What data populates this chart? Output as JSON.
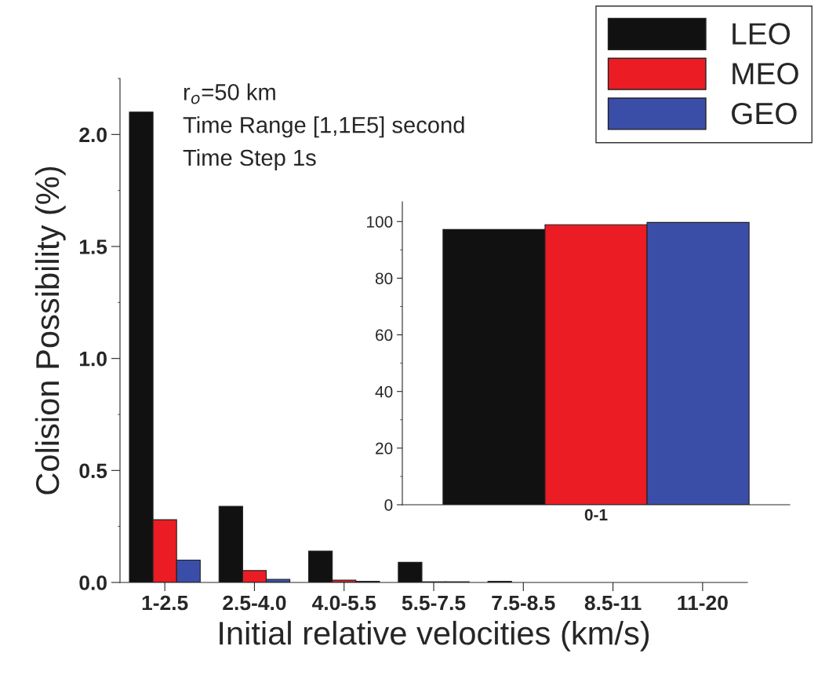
{
  "chart_data": [
    {
      "type": "bar",
      "xlabel": "Initial relative velocities (km/s)",
      "ylabel": "Colision Possibility (%)",
      "categories": [
        "1-2.5",
        "2.5-4.0",
        "4.0-5.5",
        "5.5-7.5",
        "7.5-8.5",
        "8.5-11",
        "11-20"
      ],
      "series": [
        {
          "name": "LEO",
          "color": "#111111",
          "values": [
            2.1,
            0.34,
            0.14,
            0.09,
            0.005,
            0,
            0
          ]
        },
        {
          "name": "MEO",
          "color": "#ec1c24",
          "values": [
            0.28,
            0.053,
            0.01,
            0.003,
            0,
            0,
            0
          ]
        },
        {
          "name": "GEO",
          "color": "#3a4ea8",
          "values": [
            0.1,
            0.014,
            0.005,
            0.003,
            0,
            0,
            0
          ]
        }
      ],
      "ylim": [
        0,
        2.25
      ],
      "yticks": [
        {
          "value": 0,
          "label": "0.0"
        },
        0.5,
        {
          "value": 1,
          "label": "1.0"
        },
        1.5,
        {
          "value": 2,
          "label": "2.0"
        }
      ],
      "annotations": [
        "r$_{o}$=50 km",
        "Time Range [1,1E5] second",
        "Time Step 1s"
      ],
      "legend": "top right",
      "grid": false
    },
    {
      "type": "bar",
      "categories": [
        "0-1"
      ],
      "series": [
        {
          "color": "#111111",
          "values": [
            97.2
          ]
        },
        {
          "color": "#ec1c24",
          "values": [
            98.9
          ]
        },
        {
          "color": "#3a4ea8",
          "values": [
            99.7
          ]
        }
      ],
      "ylim": [
        0,
        107
      ],
      "yticks": [
        0,
        20,
        40,
        60,
        80,
        100
      ],
      "grid": false
    }
  ]
}
